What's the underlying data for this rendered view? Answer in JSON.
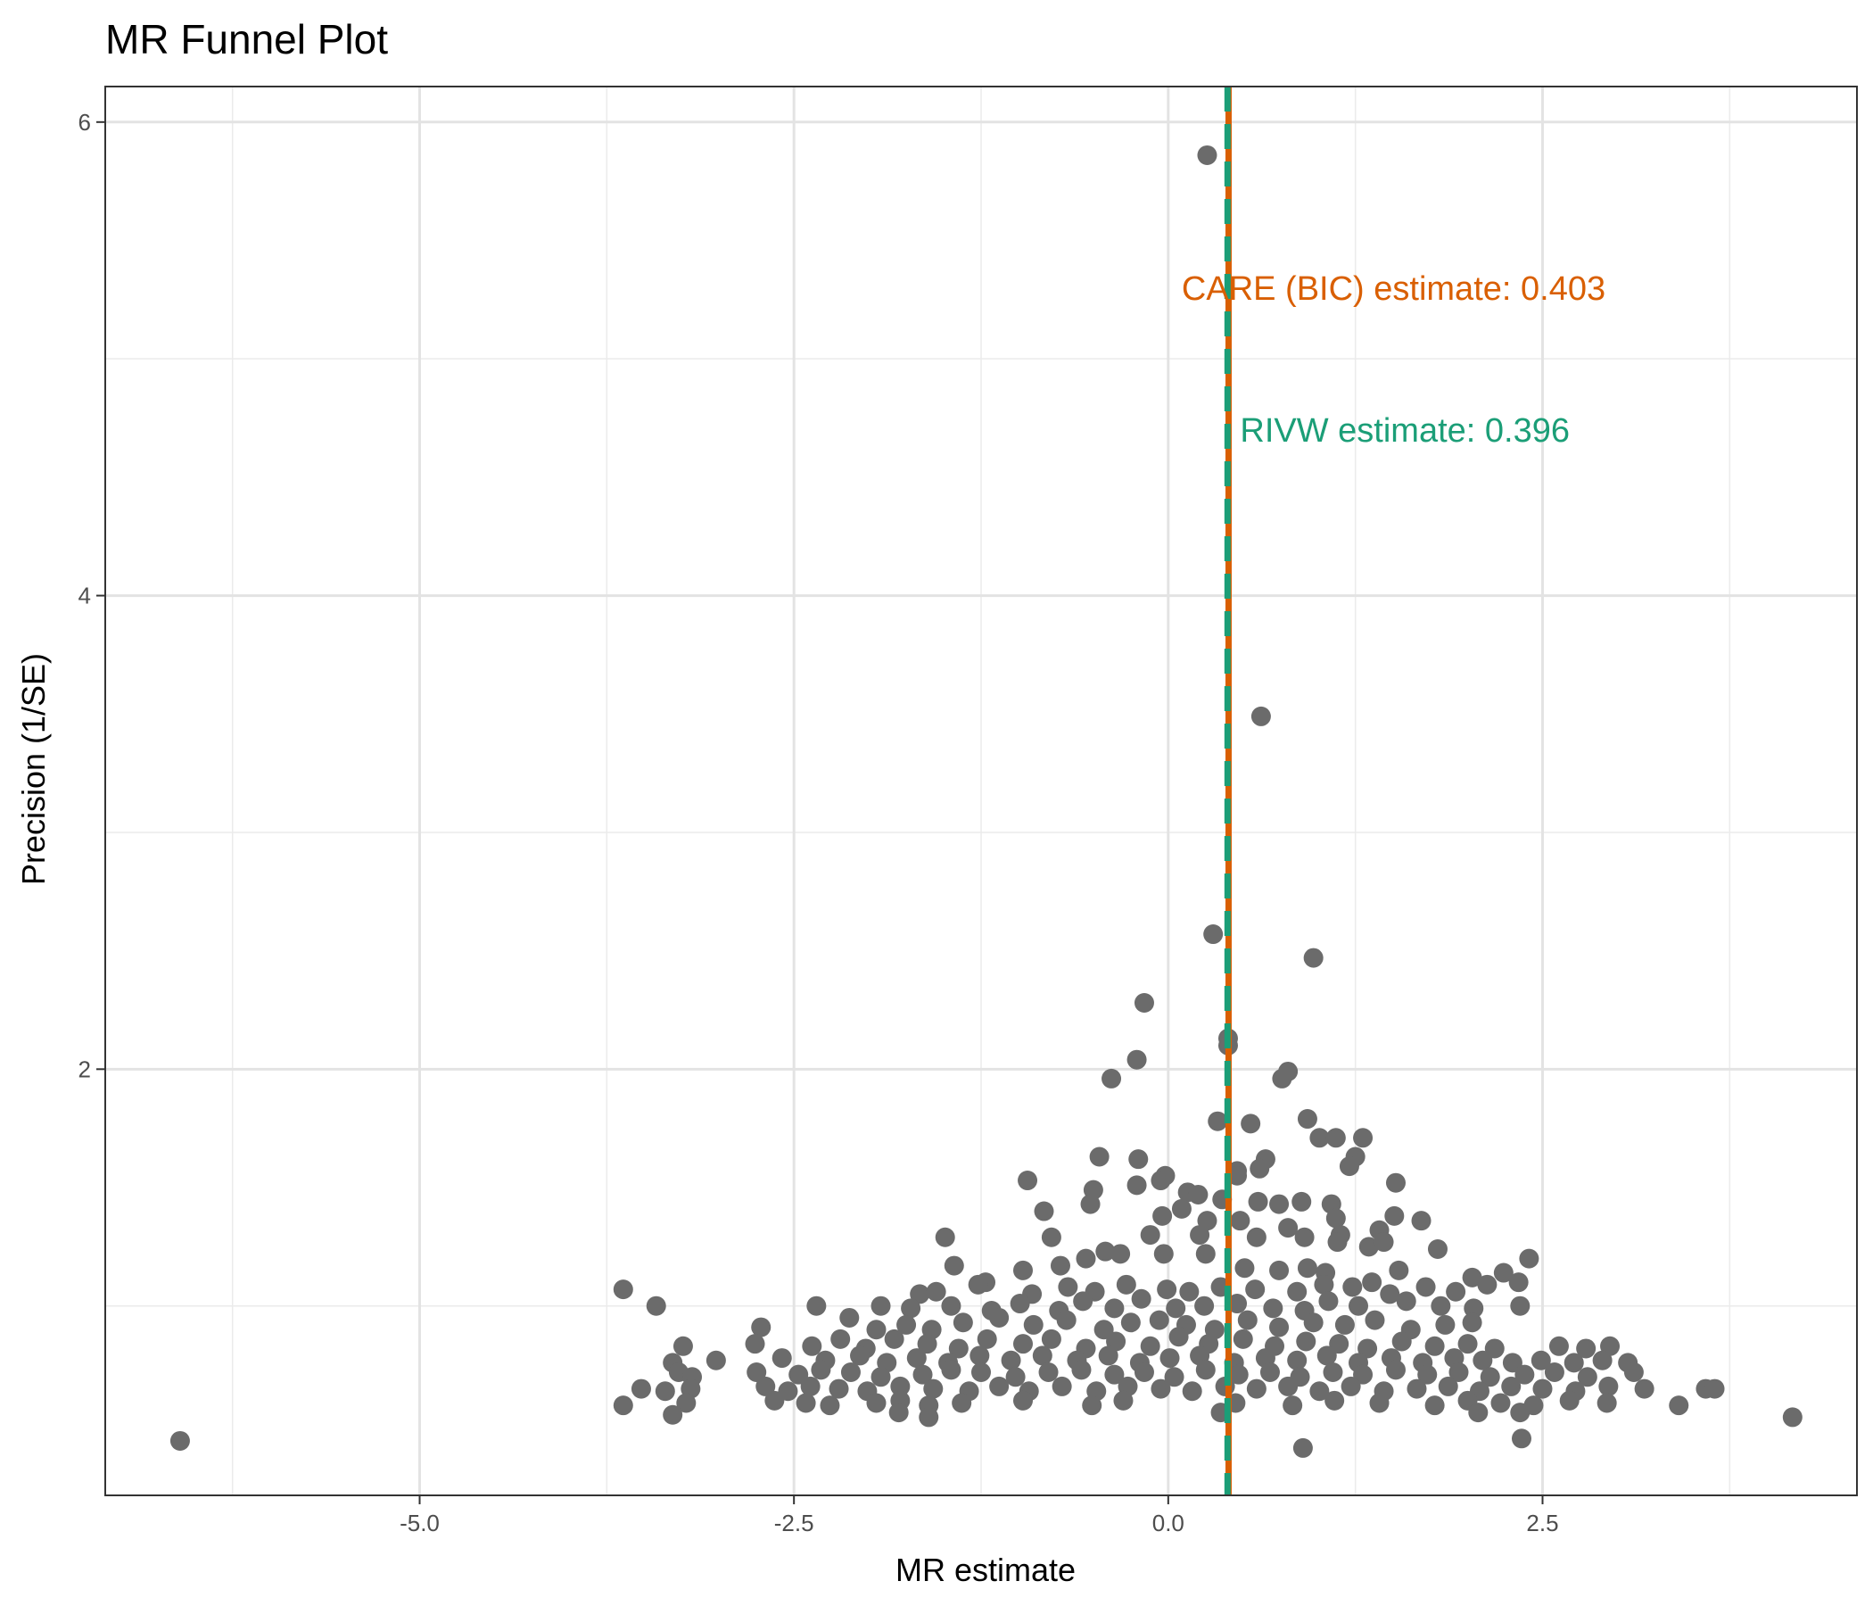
{
  "chart_data": {
    "type": "scatter",
    "title": "MR Funnel Plot",
    "xlabel": "MR estimate",
    "ylabel": "Precision (1/SE)",
    "xlim": [
      -7.1,
      4.6
    ],
    "ylim": [
      0.2,
      6.15
    ],
    "x_ticks": [
      -5.0,
      -2.5,
      0.0,
      2.5
    ],
    "x_tick_labels": [
      "-5.0",
      "-2.5",
      "0.0",
      "2.5"
    ],
    "y_ticks": [
      2,
      4,
      6
    ],
    "y_tick_labels": [
      "2",
      "4",
      "6"
    ],
    "grid": true,
    "point_color": "#6b6b6b",
    "reference_lines": [
      {
        "name": "CARE (BIC) estimate",
        "x": 0.403,
        "color": "#d95f02",
        "style": "solid",
        "label": "CARE (BIC) estimate: 0.403",
        "label_x": 0.09,
        "label_y": 5.25
      },
      {
        "name": "RIVW estimate",
        "x": 0.396,
        "color": "#1b9e77",
        "style": "dashed",
        "label": "RIVW estimate: 0.396",
        "label_x": 0.48,
        "label_y": 4.65
      }
    ],
    "points": [
      [
        0.26,
        5.86
      ],
      [
        0.62,
        3.49
      ],
      [
        0.3,
        2.57
      ],
      [
        0.97,
        2.47
      ],
      [
        -0.16,
        2.28
      ],
      [
        0.4,
        2.13
      ],
      [
        0.4,
        2.1
      ],
      [
        -0.21,
        2.04
      ],
      [
        -0.38,
        1.96
      ],
      [
        0.8,
        1.99
      ],
      [
        0.76,
        1.96
      ],
      [
        0.93,
        1.79
      ],
      [
        0.33,
        1.78
      ],
      [
        0.55,
        1.77
      ],
      [
        1.01,
        1.71
      ],
      [
        1.12,
        1.71
      ],
      [
        1.3,
        1.71
      ],
      [
        1.25,
        1.63
      ],
      [
        1.21,
        1.59
      ],
      [
        -0.46,
        1.63
      ],
      [
        -0.2,
        1.62
      ],
      [
        0.46,
        1.57
      ],
      [
        0.65,
        1.62
      ],
      [
        0.61,
        1.58
      ],
      [
        -0.02,
        1.55
      ],
      [
        -0.05,
        1.53
      ],
      [
        -0.21,
        1.51
      ],
      [
        0.46,
        1.55
      ],
      [
        -0.94,
        1.53
      ],
      [
        -0.5,
        1.49
      ],
      [
        1.52,
        1.52
      ],
      [
        0.13,
        1.48
      ],
      [
        0.2,
        1.47
      ],
      [
        0.36,
        1.45
      ],
      [
        0.6,
        1.44
      ],
      [
        0.74,
        1.43
      ],
      [
        0.89,
        1.44
      ],
      [
        1.09,
        1.43
      ],
      [
        1.51,
        1.38
      ],
      [
        1.69,
        1.36
      ],
      [
        -0.52,
        1.43
      ],
      [
        -0.83,
        1.4
      ],
      [
        -0.04,
        1.38
      ],
      [
        0.09,
        1.41
      ],
      [
        0.26,
        1.36
      ],
      [
        0.48,
        1.36
      ],
      [
        0.8,
        1.33
      ],
      [
        1.12,
        1.37
      ],
      [
        1.15,
        1.3
      ],
      [
        1.41,
        1.32
      ],
      [
        -1.49,
        1.29
      ],
      [
        -0.78,
        1.29
      ],
      [
        -0.42,
        1.23
      ],
      [
        -0.12,
        1.3
      ],
      [
        0.21,
        1.3
      ],
      [
        0.59,
        1.29
      ],
      [
        0.91,
        1.29
      ],
      [
        1.13,
        1.27
      ],
      [
        1.34,
        1.25
      ],
      [
        1.44,
        1.27
      ],
      [
        1.8,
        1.24
      ],
      [
        -1.43,
        1.17
      ],
      [
        -1.22,
        1.1
      ],
      [
        -0.97,
        1.15
      ],
      [
        -0.72,
        1.17
      ],
      [
        -0.55,
        1.2
      ],
      [
        -0.32,
        1.22
      ],
      [
        -0.03,
        1.22
      ],
      [
        0.25,
        1.22
      ],
      [
        0.51,
        1.16
      ],
      [
        0.74,
        1.15
      ],
      [
        0.93,
        1.16
      ],
      [
        1.05,
        1.14
      ],
      [
        1.36,
        1.1
      ],
      [
        1.54,
        1.15
      ],
      [
        2.03,
        1.12
      ],
      [
        2.24,
        1.14
      ],
      [
        2.41,
        1.2
      ],
      [
        -1.66,
        1.05
      ],
      [
        -1.55,
        1.06
      ],
      [
        -1.27,
        1.09
      ],
      [
        -0.91,
        1.05
      ],
      [
        -0.67,
        1.08
      ],
      [
        -0.49,
        1.06
      ],
      [
        -0.28,
        1.09
      ],
      [
        -0.01,
        1.07
      ],
      [
        0.14,
        1.06
      ],
      [
        0.35,
        1.08
      ],
      [
        0.58,
        1.07
      ],
      [
        0.86,
        1.06
      ],
      [
        1.04,
        1.09
      ],
      [
        1.23,
        1.08
      ],
      [
        1.48,
        1.05
      ],
      [
        1.72,
        1.08
      ],
      [
        1.92,
        1.06
      ],
      [
        2.13,
        1.09
      ],
      [
        2.34,
        1.1
      ],
      [
        -3.64,
        1.07
      ],
      [
        -3.42,
        1.0
      ],
      [
        -2.35,
        1.0
      ],
      [
        -1.92,
        1.0
      ],
      [
        -1.72,
        0.99
      ],
      [
        -1.45,
        1.0
      ],
      [
        -1.18,
        0.98
      ],
      [
        -0.99,
        1.01
      ],
      [
        -0.73,
        0.98
      ],
      [
        -0.57,
        1.02
      ],
      [
        -0.36,
        0.99
      ],
      [
        -0.18,
        1.03
      ],
      [
        0.05,
        0.99
      ],
      [
        0.24,
        1.0
      ],
      [
        0.46,
        1.01
      ],
      [
        0.7,
        0.99
      ],
      [
        0.91,
        0.98
      ],
      [
        1.07,
        1.02
      ],
      [
        1.27,
        1.0
      ],
      [
        1.59,
        1.02
      ],
      [
        1.82,
        1.0
      ],
      [
        2.04,
        0.99
      ],
      [
        2.35,
        1.0
      ],
      [
        -2.72,
        0.91
      ],
      [
        -2.13,
        0.95
      ],
      [
        -1.95,
        0.9
      ],
      [
        -1.75,
        0.92
      ],
      [
        -1.58,
        0.9
      ],
      [
        -1.37,
        0.93
      ],
      [
        -1.13,
        0.95
      ],
      [
        -0.9,
        0.92
      ],
      [
        -0.68,
        0.94
      ],
      [
        -0.43,
        0.9
      ],
      [
        -0.25,
        0.93
      ],
      [
        -0.06,
        0.94
      ],
      [
        0.12,
        0.92
      ],
      [
        0.31,
        0.9
      ],
      [
        0.53,
        0.94
      ],
      [
        0.74,
        0.91
      ],
      [
        0.97,
        0.93
      ],
      [
        1.18,
        0.92
      ],
      [
        1.38,
        0.94
      ],
      [
        1.62,
        0.9
      ],
      [
        1.85,
        0.92
      ],
      [
        2.03,
        0.93
      ],
      [
        -3.24,
        0.83
      ],
      [
        -2.76,
        0.84
      ],
      [
        -2.38,
        0.83
      ],
      [
        -2.19,
        0.86
      ],
      [
        -2.02,
        0.82
      ],
      [
        -1.83,
        0.86
      ],
      [
        -1.61,
        0.84
      ],
      [
        -1.4,
        0.82
      ],
      [
        -1.21,
        0.86
      ],
      [
        -0.97,
        0.84
      ],
      [
        -0.78,
        0.86
      ],
      [
        -0.55,
        0.82
      ],
      [
        -0.35,
        0.85
      ],
      [
        -0.12,
        0.83
      ],
      [
        0.07,
        0.87
      ],
      [
        0.27,
        0.84
      ],
      [
        0.5,
        0.86
      ],
      [
        0.71,
        0.83
      ],
      [
        0.92,
        0.85
      ],
      [
        1.14,
        0.84
      ],
      [
        1.33,
        0.82
      ],
      [
        1.56,
        0.85
      ],
      [
        1.78,
        0.83
      ],
      [
        2.0,
        0.84
      ],
      [
        2.18,
        0.82
      ],
      [
        2.61,
        0.83
      ],
      [
        2.79,
        0.82
      ],
      [
        2.95,
        0.83
      ],
      [
        -3.31,
        0.76
      ],
      [
        -3.02,
        0.77
      ],
      [
        -2.58,
        0.78
      ],
      [
        -2.29,
        0.77
      ],
      [
        -2.06,
        0.79
      ],
      [
        -1.88,
        0.76
      ],
      [
        -1.68,
        0.78
      ],
      [
        -1.47,
        0.76
      ],
      [
        -1.26,
        0.79
      ],
      [
        -1.05,
        0.77
      ],
      [
        -0.84,
        0.79
      ],
      [
        -0.61,
        0.77
      ],
      [
        -0.4,
        0.79
      ],
      [
        -0.19,
        0.76
      ],
      [
        0.01,
        0.78
      ],
      [
        0.21,
        0.79
      ],
      [
        0.44,
        0.76
      ],
      [
        0.65,
        0.78
      ],
      [
        0.86,
        0.77
      ],
      [
        1.06,
        0.79
      ],
      [
        1.27,
        0.76
      ],
      [
        1.49,
        0.78
      ],
      [
        1.7,
        0.76
      ],
      [
        1.91,
        0.78
      ],
      [
        2.1,
        0.77
      ],
      [
        2.3,
        0.76
      ],
      [
        2.49,
        0.77
      ],
      [
        2.71,
        0.76
      ],
      [
        2.9,
        0.77
      ],
      [
        3.07,
        0.76
      ],
      [
        -3.27,
        0.72
      ],
      [
        -3.18,
        0.7
      ],
      [
        -2.75,
        0.72
      ],
      [
        -2.47,
        0.71
      ],
      [
        -2.32,
        0.73
      ],
      [
        -2.12,
        0.72
      ],
      [
        -1.92,
        0.7
      ],
      [
        -1.64,
        0.71
      ],
      [
        -1.45,
        0.73
      ],
      [
        -1.25,
        0.72
      ],
      [
        -1.02,
        0.7
      ],
      [
        -0.8,
        0.72
      ],
      [
        -0.58,
        0.73
      ],
      [
        -0.36,
        0.71
      ],
      [
        -0.16,
        0.72
      ],
      [
        0.04,
        0.7
      ],
      [
        0.25,
        0.73
      ],
      [
        0.47,
        0.71
      ],
      [
        0.68,
        0.72
      ],
      [
        0.88,
        0.7
      ],
      [
        1.1,
        0.72
      ],
      [
        1.3,
        0.71
      ],
      [
        1.52,
        0.73
      ],
      [
        1.73,
        0.71
      ],
      [
        1.94,
        0.72
      ],
      [
        2.15,
        0.7
      ],
      [
        2.38,
        0.71
      ],
      [
        2.58,
        0.72
      ],
      [
        2.8,
        0.7
      ],
      [
        3.11,
        0.72
      ],
      [
        -3.52,
        0.65
      ],
      [
        -3.36,
        0.64
      ],
      [
        -3.19,
        0.65
      ],
      [
        -2.69,
        0.66
      ],
      [
        -2.54,
        0.64
      ],
      [
        -2.39,
        0.66
      ],
      [
        -2.2,
        0.65
      ],
      [
        -2.01,
        0.64
      ],
      [
        -1.79,
        0.66
      ],
      [
        -1.57,
        0.65
      ],
      [
        -1.33,
        0.64
      ],
      [
        -1.13,
        0.66
      ],
      [
        -0.93,
        0.64
      ],
      [
        -0.71,
        0.66
      ],
      [
        -0.48,
        0.64
      ],
      [
        -0.27,
        0.66
      ],
      [
        -0.05,
        0.65
      ],
      [
        0.16,
        0.64
      ],
      [
        0.38,
        0.66
      ],
      [
        0.59,
        0.65
      ],
      [
        0.8,
        0.66
      ],
      [
        1.01,
        0.64
      ],
      [
        1.22,
        0.66
      ],
      [
        1.44,
        0.64
      ],
      [
        1.66,
        0.65
      ],
      [
        1.87,
        0.66
      ],
      [
        2.08,
        0.64
      ],
      [
        2.29,
        0.66
      ],
      [
        2.5,
        0.65
      ],
      [
        2.72,
        0.64
      ],
      [
        2.94,
        0.66
      ],
      [
        3.18,
        0.65
      ],
      [
        3.59,
        0.65
      ],
      [
        3.65,
        0.65
      ],
      [
        -3.64,
        0.58
      ],
      [
        -3.22,
        0.59
      ],
      [
        -2.63,
        0.6
      ],
      [
        -2.42,
        0.59
      ],
      [
        -2.26,
        0.58
      ],
      [
        -1.95,
        0.59
      ],
      [
        -1.79,
        0.6
      ],
      [
        -1.6,
        0.58
      ],
      [
        -1.38,
        0.59
      ],
      [
        -0.97,
        0.6
      ],
      [
        -0.51,
        0.58
      ],
      [
        -0.3,
        0.6
      ],
      [
        0.45,
        0.59
      ],
      [
        0.83,
        0.58
      ],
      [
        1.11,
        0.6
      ],
      [
        1.41,
        0.59
      ],
      [
        1.78,
        0.58
      ],
      [
        2.0,
        0.6
      ],
      [
        2.22,
        0.59
      ],
      [
        2.44,
        0.58
      ],
      [
        2.68,
        0.6
      ],
      [
        2.93,
        0.59
      ],
      [
        3.41,
        0.58
      ],
      [
        -3.31,
        0.54
      ],
      [
        -1.8,
        0.55
      ],
      [
        -1.6,
        0.53
      ],
      [
        0.35,
        0.55
      ],
      [
        2.07,
        0.55
      ],
      [
        2.35,
        0.55
      ],
      [
        4.17,
        0.53
      ],
      [
        -6.6,
        0.43
      ],
      [
        2.36,
        0.44
      ],
      [
        0.9,
        0.4
      ]
    ]
  }
}
